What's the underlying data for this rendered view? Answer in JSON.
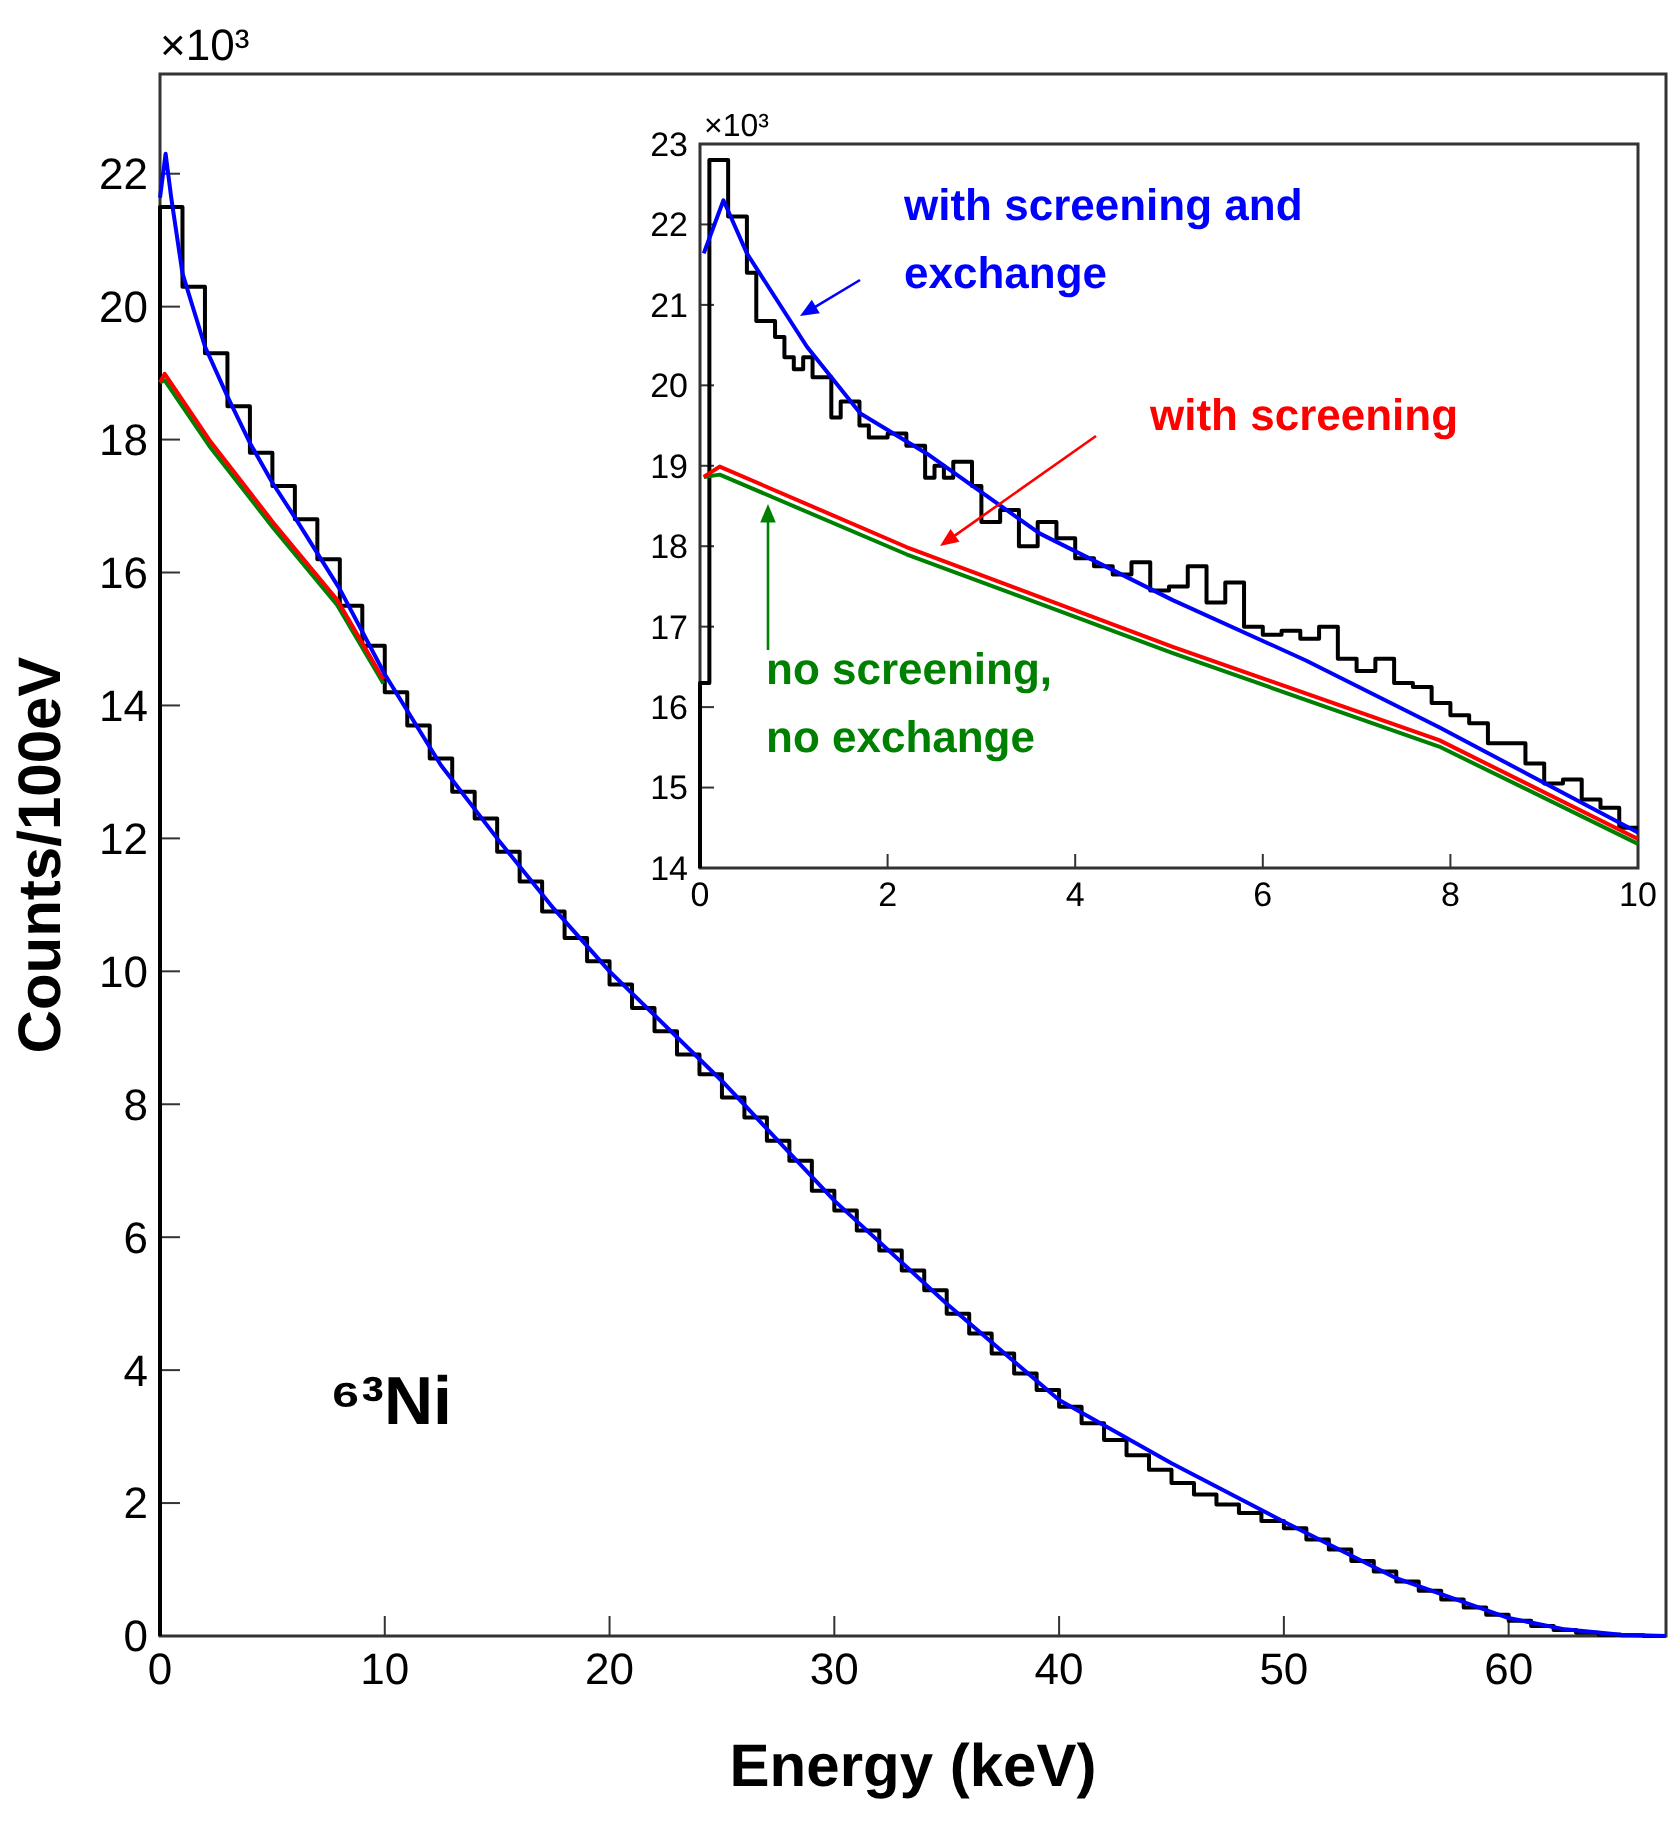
{
  "chart_data": [
    {
      "type": "line",
      "xlabel": "Energy (keV)",
      "ylabel": "Counts/100eV",
      "xlim": [
        0,
        67
      ],
      "ylim": [
        0,
        23.5
      ],
      "xticks": [
        0,
        10,
        20,
        30,
        40,
        50,
        60
      ],
      "yticks": [
        0,
        2,
        4,
        6,
        8,
        10,
        12,
        14,
        16,
        18,
        20,
        22
      ],
      "grid": false,
      "annotations": [
        "×10³",
        "⁶³Ni"
      ],
      "series": [
        {
          "type": "histogram",
          "color": "#000000",
          "bins": [
            0,
            1,
            2,
            3,
            4,
            5,
            6,
            7,
            8,
            9,
            10,
            11,
            12,
            13,
            14,
            15,
            16,
            17,
            18,
            19,
            20,
            21,
            22,
            23,
            24,
            25,
            26,
            27,
            28,
            29,
            30,
            31,
            32,
            33,
            34,
            35,
            36,
            37,
            38,
            39,
            40,
            41,
            42,
            43,
            44,
            45,
            46,
            47,
            48,
            49,
            50,
            51,
            52,
            53,
            54,
            55,
            56,
            57,
            58,
            59,
            60,
            61,
            62,
            63,
            64,
            65,
            66,
            67
          ],
          "values": [
            21.5,
            20.3,
            19.3,
            18.5,
            17.8,
            17.3,
            16.8,
            16.2,
            15.5,
            14.9,
            14.2,
            13.7,
            13.2,
            12.7,
            12.3,
            11.8,
            11.35,
            10.9,
            10.5,
            10.15,
            9.8,
            9.45,
            9.1,
            8.75,
            8.45,
            8.1,
            7.8,
            7.45,
            7.15,
            6.7,
            6.4,
            6.1,
            5.8,
            5.5,
            5.2,
            4.85,
            4.55,
            4.25,
            3.95,
            3.7,
            3.45,
            3.2,
            2.95,
            2.72,
            2.5,
            2.3,
            2.13,
            1.98,
            1.85,
            1.73,
            1.62,
            1.45,
            1.3,
            1.13,
            0.97,
            0.82,
            0.68,
            0.55,
            0.43,
            0.32,
            0.23,
            0.15,
            0.09,
            0.05,
            0.02,
            0.01,
            0
          ]
        },
        {
          "type": "line",
          "color": "#008000",
          "x": [
            0,
            0.21,
            2.2,
            5.04,
            7.88,
            9.94
          ],
          "values": [
            18.86,
            18.89,
            17.9,
            16.67,
            15.51,
            14.33
          ]
        },
        {
          "type": "line",
          "color": "#ff0000",
          "x": [
            0,
            0.21,
            2.2,
            5.04,
            7.88,
            9.94
          ],
          "values": [
            18.86,
            18.99,
            17.99,
            16.75,
            15.59,
            14.39
          ]
        },
        {
          "type": "line",
          "color": "#0000ff",
          "x": [
            0,
            0.25,
            0.5,
            1,
            2,
            3,
            4,
            5,
            6,
            8,
            10,
            12.5,
            15,
            17.5,
            20,
            25,
            30,
            35,
            40,
            45,
            50,
            55,
            60,
            62.5,
            65,
            67
          ],
          "values": [
            21.64,
            22.3,
            21.64,
            20.5,
            19.4,
            18.65,
            17.95,
            17.35,
            16.83,
            15.75,
            14.47,
            13.1,
            12.0,
            10.95,
            10.0,
            8.35,
            6.55,
            5.0,
            3.55,
            2.6,
            1.72,
            0.87,
            0.27,
            0.1,
            0.02,
            0
          ]
        }
      ]
    },
    {
      "type": "line",
      "xlim": [
        0,
        10
      ],
      "ylim": [
        14,
        23
      ],
      "xticks": [
        0,
        2,
        4,
        6,
        8,
        10
      ],
      "yticks": [
        14,
        15,
        16,
        17,
        18,
        19,
        20,
        21,
        22,
        23
      ],
      "grid": false,
      "annotations": [
        "×10³"
      ],
      "series": [
        {
          "type": "histogram",
          "color": "#000000",
          "bins": [
            0,
            0.1,
            0.3,
            0.5,
            0.6,
            0.8,
            0.9,
            1.0,
            1.1,
            1.2,
            1.4,
            1.5,
            1.7,
            1.8,
            2.0,
            2.2,
            2.4,
            2.5,
            2.6,
            2.7,
            2.9,
            3.0,
            3.2,
            3.4,
            3.6,
            3.8,
            4.0,
            4.2,
            4.4,
            4.6,
            4.8,
            5.0,
            5.2,
            5.4,
            5.6,
            5.8,
            6.0,
            6.2,
            6.4,
            6.6,
            6.8,
            7.0,
            7.2,
            7.4,
            7.6,
            7.8,
            8.0,
            8.2,
            8.4,
            8.6,
            8.8,
            9.0,
            9.2,
            9.4,
            9.6,
            9.8,
            10.0
          ],
          "values": [
            16.3,
            22.8,
            22.1,
            21.4,
            20.8,
            20.6,
            20.35,
            20.2,
            20.35,
            20.1,
            19.6,
            19.8,
            19.5,
            19.35,
            19.4,
            19.25,
            18.85,
            19.0,
            18.85,
            19.05,
            18.75,
            18.3,
            18.45,
            18.0,
            18.3,
            18.1,
            17.85,
            17.75,
            17.65,
            17.8,
            17.45,
            17.5,
            17.75,
            17.3,
            17.55,
            17.0,
            16.9,
            16.95,
            16.85,
            17.0,
            16.6,
            16.45,
            16.6,
            16.3,
            16.25,
            16.05,
            15.9,
            15.8,
            15.55,
            15.55,
            15.3,
            15.05,
            15.1,
            14.85,
            14.75,
            14.5
          ]
        },
        {
          "type": "line",
          "name": "no screening, no exchange",
          "color": "#008000",
          "x": [
            0.04,
            0.21,
            2.2,
            5.04,
            7.88,
            10
          ],
          "values": [
            18.86,
            18.89,
            17.9,
            16.67,
            15.51,
            14.3
          ]
        },
        {
          "type": "line",
          "name": "with screening",
          "color": "#ff0000",
          "x": [
            0.04,
            0.21,
            2.2,
            5.04,
            7.88,
            10
          ],
          "values": [
            18.86,
            18.99,
            17.99,
            16.75,
            15.59,
            14.36
          ]
        },
        {
          "type": "line",
          "name": "with screening and exchange",
          "color": "#0000ff",
          "x": [
            0.04,
            0.25,
            0.5,
            1.14,
            1.71,
            2.42,
            3.62,
            5.04,
            6.46,
            7.88,
            10
          ],
          "values": [
            21.64,
            22.3,
            21.64,
            20.48,
            19.65,
            19.15,
            18.16,
            17.33,
            16.58,
            15.75,
            14.44
          ]
        }
      ]
    }
  ]
}
